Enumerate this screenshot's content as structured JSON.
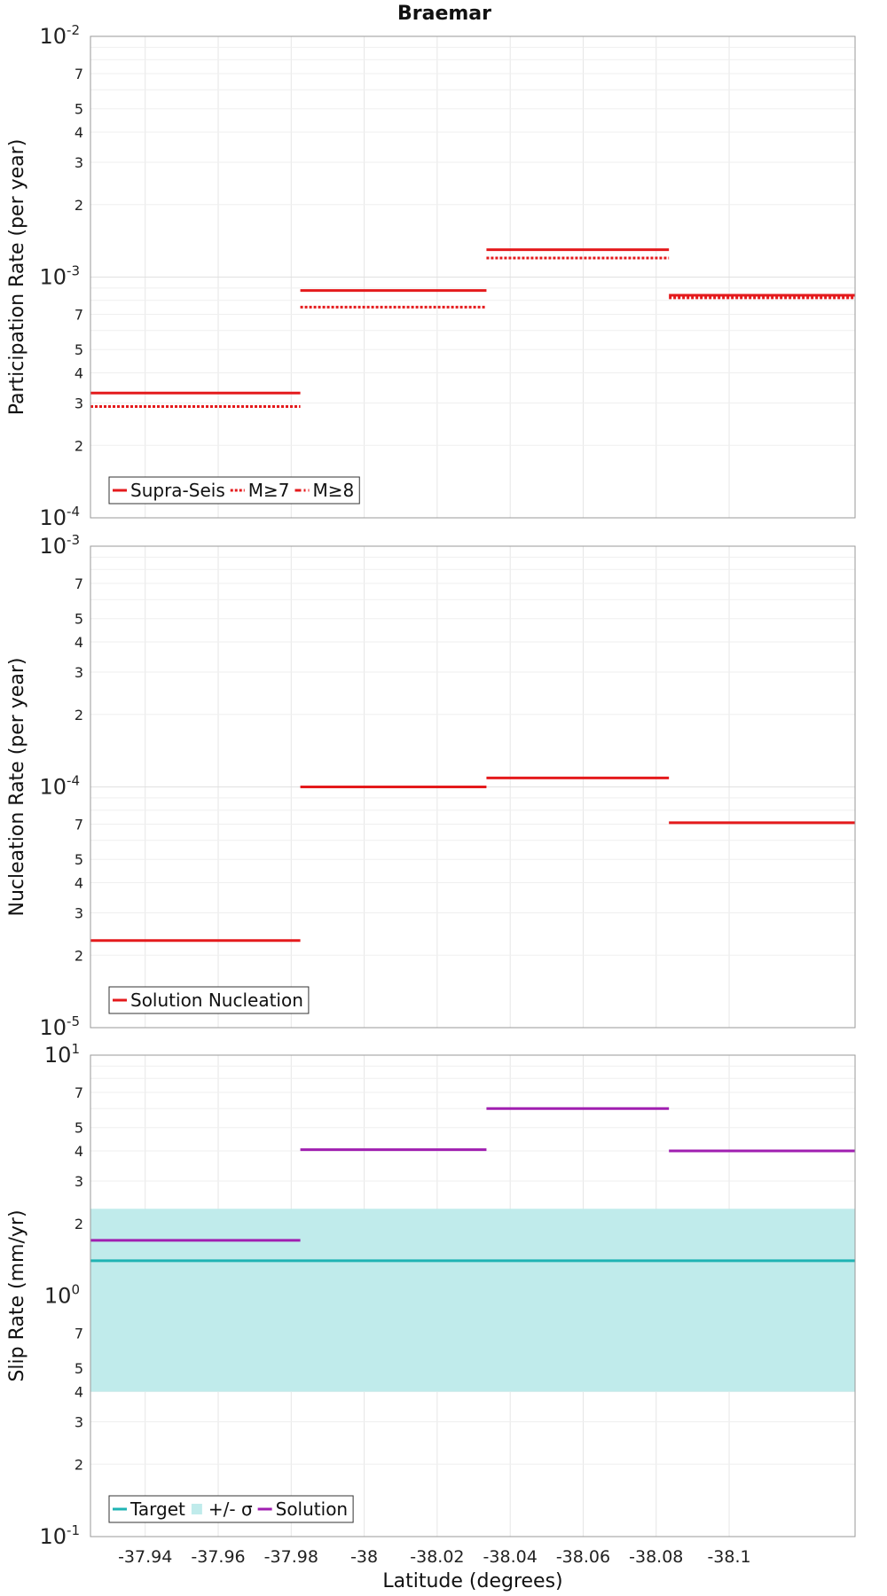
{
  "title": "Braemar",
  "xlabel": "Latitude (degrees)",
  "chart_data": [
    {
      "type": "line",
      "ylabel": "Participation Rate (per year)",
      "yscale": "log",
      "ylim": [
        0.0001,
        0.01
      ],
      "xlim": [
        -37.925,
        -38.1345
      ],
      "legend_position": "bottom-left",
      "legend": [
        "Supra-Seis",
        "M≥7",
        "M≥8"
      ],
      "series": [
        {
          "name": "Supra-Seis",
          "style": "solid",
          "color": "#e41a1c",
          "segments": [
            {
              "x0": -37.925,
              "x1": -37.9825,
              "y": 0.00033
            },
            {
              "x0": -37.9825,
              "x1": -38.0335,
              "y": 0.00088
            },
            {
              "x0": -38.0335,
              "x1": -38.0835,
              "y": 0.0013
            },
            {
              "x0": -38.0835,
              "x1": -38.1345,
              "y": 0.00084
            }
          ]
        },
        {
          "name": "M≥7",
          "style": "dotted",
          "color": "#e41a1c",
          "segments": [
            {
              "x0": -37.925,
              "x1": -37.9825,
              "y": 0.00029
            },
            {
              "x0": -37.9825,
              "x1": -38.0335,
              "y": 0.00075
            },
            {
              "x0": -38.0335,
              "x1": -38.0835,
              "y": 0.0012
            },
            {
              "x0": -38.0835,
              "x1": -38.1345,
              "y": 0.00082
            }
          ]
        },
        {
          "name": "M≥8",
          "style": "dashdot",
          "color": "#e41a1c",
          "segments": []
        }
      ]
    },
    {
      "type": "line",
      "ylabel": "Nucleation Rate (per year)",
      "yscale": "log",
      "ylim": [
        1e-05,
        0.001
      ],
      "xlim": [
        -37.925,
        -38.1345
      ],
      "legend_position": "bottom-left",
      "legend": [
        "Solution Nucleation"
      ],
      "series": [
        {
          "name": "Solution Nucleation",
          "style": "solid",
          "color": "#e41a1c",
          "segments": [
            {
              "x0": -37.925,
              "x1": -37.9825,
              "y": 2.3e-05
            },
            {
              "x0": -37.9825,
              "x1": -38.0335,
              "y": 0.0001
            },
            {
              "x0": -38.0335,
              "x1": -38.0835,
              "y": 0.000109
            },
            {
              "x0": -38.0835,
              "x1": -38.1345,
              "y": 7.1e-05
            }
          ]
        }
      ]
    },
    {
      "type": "line",
      "ylabel": "Slip Rate (mm/yr)",
      "yscale": "log",
      "ylim": [
        0.1,
        10
      ],
      "xlim": [
        -37.925,
        -38.1345
      ],
      "legend_position": "bottom-left",
      "legend": [
        "Target",
        "+/- σ",
        "Solution"
      ],
      "band": {
        "name": "+/- σ",
        "color": "#c0ebeb",
        "y0": 0.4,
        "y1": 2.3
      },
      "series": [
        {
          "name": "Target",
          "style": "solid",
          "color": "#1fb3b3",
          "segments": [
            {
              "x0": -37.925,
              "x1": -38.1345,
              "y": 1.4
            }
          ]
        },
        {
          "name": "Solution",
          "style": "solid",
          "color": "#a01fb0",
          "segments": [
            {
              "x0": -37.925,
              "x1": -37.9825,
              "y": 1.7
            },
            {
              "x0": -37.9825,
              "x1": -38.0335,
              "y": 4.05
            },
            {
              "x0": -38.0335,
              "x1": -38.0835,
              "y": 6.0
            },
            {
              "x0": -38.0835,
              "x1": -38.1345,
              "y": 4.0
            }
          ]
        }
      ]
    }
  ],
  "x_ticks": [
    -37.94,
    -37.96,
    -37.98,
    -38,
    -38.02,
    -38.04,
    -38.06,
    -38.08,
    -38.1
  ],
  "x_tick_labels": [
    "-37.94",
    "-37.96",
    "-37.98",
    "-38",
    "-38.02",
    "-38.04",
    "-38.06",
    "-38.08",
    "-38.1"
  ],
  "y_tick_labels_minor": [
    "2",
    "3",
    "4",
    "5",
    "7"
  ]
}
